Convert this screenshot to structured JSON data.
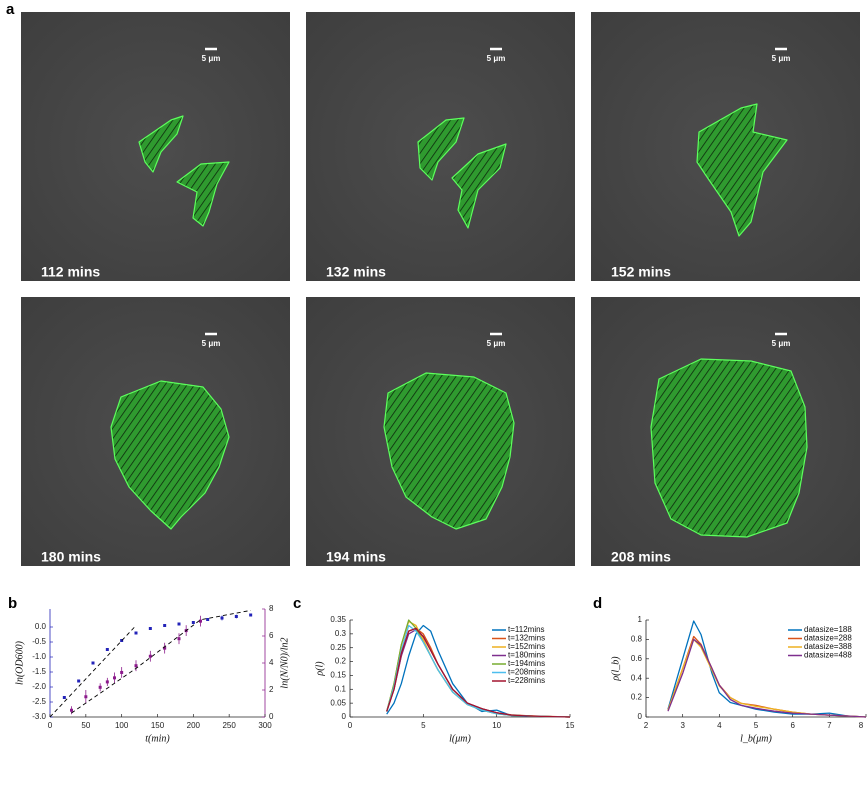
{
  "panel_labels": [
    "a",
    "b",
    "c",
    "d"
  ],
  "images": [
    {
      "label": "112 mins",
      "scale_bar": "5 μm"
    },
    {
      "label": "132 mins",
      "scale_bar": "5 μm"
    },
    {
      "label": "152 mins",
      "scale_bar": "5 μm"
    },
    {
      "label": "180 mins",
      "scale_bar": "5 μm"
    },
    {
      "label": "194 mins",
      "scale_bar": "5 μm"
    },
    {
      "label": "208 mins",
      "scale_bar": "5 μm"
    }
  ],
  "chart_data": [
    {
      "type": "scatter",
      "xlabel": "t(min)",
      "ylabel": "ln(OD600)",
      "y2label": "ln(N/N0)/ln2",
      "xlim": [
        0,
        300
      ],
      "xticks": [
        0,
        50,
        100,
        150,
        200,
        250,
        300
      ],
      "ylim": [
        -3,
        0.6
      ],
      "yticks": [
        {
          "value": -3,
          "label": "-3.0"
        },
        -2.5,
        {
          "value": -2,
          "label": "-2.0"
        },
        -1.5,
        {
          "value": -1,
          "label": "-1.0"
        },
        -0.5,
        {
          "value": 0,
          "label": "0.0"
        }
      ],
      "y2lim": [
        0,
        8
      ],
      "y2ticks": [
        0,
        2,
        4,
        6,
        8
      ],
      "y_axis_color": "#2323b8",
      "y2_axis_color": "#8b1a8b",
      "series": [
        {
          "mode": "markers",
          "color": "#2323b8",
          "x": [
            20,
            40,
            60,
            80,
            100,
            120,
            140,
            160,
            180,
            200,
            220,
            240,
            260,
            280
          ],
          "values": [
            -2.35,
            -1.8,
            -1.2,
            -0.75,
            -0.45,
            -0.2,
            -0.05,
            0.05,
            0.1,
            0.15,
            0.25,
            0.3,
            0.35,
            0.4
          ],
          "errors": [
            0.04,
            0.04,
            0.04,
            0.04,
            0.04,
            0.04,
            0.04,
            0.04,
            0.05,
            0.05,
            0.05,
            0.08,
            0.06,
            0.04
          ]
        },
        {
          "mode": "markers",
          "axis": "y2",
          "color": "#8b1a8b",
          "x": [
            30,
            50,
            70,
            80,
            90,
            100,
            120,
            140,
            160,
            180,
            190,
            210
          ],
          "values": [
            0.5,
            1.5,
            2.2,
            2.6,
            2.9,
            3.3,
            3.8,
            4.5,
            5.1,
            5.8,
            6.4,
            7.1
          ],
          "errors": [
            0.3,
            0.5,
            0.3,
            0.3,
            0.4,
            0.4,
            0.4,
            0.4,
            0.4,
            0.4,
            0.4,
            0.4
          ]
        },
        {
          "mode": "line",
          "style": "dashed",
          "color": "#000000",
          "x": [
            0,
            120
          ],
          "values": [
            -3,
            0.05
          ]
        },
        {
          "mode": "line",
          "style": "dashed",
          "axis": "y2",
          "color": "#000000",
          "x": [
            30,
            120,
            210,
            280
          ],
          "values": [
            0.3,
            3.6,
            7.2,
            7.9
          ]
        }
      ]
    },
    {
      "type": "line",
      "xlabel": "l(μm)",
      "ylabel": "ρ(l)",
      "legend": "upper right",
      "xlim": [
        0,
        15
      ],
      "xticks": [
        0,
        5,
        10,
        15
      ],
      "ylim": [
        0,
        0.35
      ],
      "yticks": [
        0,
        0.05,
        0.1,
        0.15,
        0.2,
        0.25,
        0.3,
        0.35
      ],
      "x": [
        2.5,
        3,
        3.5,
        4,
        4.5,
        5,
        5.5,
        6,
        7,
        8,
        9,
        10,
        11,
        12,
        13,
        15
      ],
      "series": [
        {
          "name": "t=112mins",
          "color": "#0072BD",
          "values": [
            0.01,
            0.05,
            0.12,
            0.22,
            0.3,
            0.33,
            0.31,
            0.24,
            0.12,
            0.05,
            0.02,
            0.025,
            0.005,
            0.003,
            0.002,
            0
          ]
        },
        {
          "name": "t=132mins",
          "color": "#D95319",
          "values": [
            0.02,
            0.1,
            0.22,
            0.31,
            0.32,
            0.3,
            0.25,
            0.19,
            0.1,
            0.05,
            0.03,
            0.015,
            0.008,
            0.005,
            0.003,
            0
          ]
        },
        {
          "name": "t=152mins",
          "color": "#EDB120",
          "values": [
            0.02,
            0.12,
            0.26,
            0.345,
            0.33,
            0.28,
            0.22,
            0.17,
            0.09,
            0.045,
            0.025,
            0.012,
            0.006,
            0.004,
            0.002,
            0
          ]
        },
        {
          "name": "t=180mins",
          "color": "#7E2F8E",
          "values": [
            0.02,
            0.1,
            0.22,
            0.3,
            0.315,
            0.29,
            0.24,
            0.19,
            0.1,
            0.05,
            0.03,
            0.015,
            0.007,
            0.004,
            0.002,
            0
          ]
        },
        {
          "name": "t=194mins",
          "color": "#77AC30",
          "values": [
            0.02,
            0.12,
            0.26,
            0.35,
            0.32,
            0.27,
            0.22,
            0.17,
            0.09,
            0.045,
            0.025,
            0.012,
            0.006,
            0.004,
            0.002,
            0
          ]
        },
        {
          "name": "t=208mins",
          "color": "#4DBEEE",
          "values": [
            0.02,
            0.11,
            0.24,
            0.33,
            0.31,
            0.27,
            0.22,
            0.17,
            0.09,
            0.045,
            0.025,
            0.012,
            0.006,
            0.004,
            0.002,
            0
          ]
        },
        {
          "name": "t=228mins",
          "color": "#A2142F",
          "values": [
            0.02,
            0.1,
            0.23,
            0.31,
            0.32,
            0.29,
            0.24,
            0.19,
            0.1,
            0.05,
            0.03,
            0.015,
            0.007,
            0.004,
            0.002,
            0
          ]
        }
      ]
    },
    {
      "type": "line",
      "xlabel": "l_b(μm)",
      "ylabel": "ρ(l_b)",
      "legend": "upper right",
      "xlim": [
        2,
        8
      ],
      "xticks": [
        2,
        3,
        4,
        5,
        6,
        7,
        8
      ],
      "ylim": [
        0,
        1
      ],
      "yticks": [
        0,
        0.2,
        0.4,
        0.6,
        0.8,
        1
      ],
      "x": [
        2.6,
        3,
        3.3,
        3.5,
        3.8,
        4,
        4.3,
        4.6,
        5,
        5.5,
        6,
        6.5,
        7,
        7.5,
        8
      ],
      "series": [
        {
          "name": "datasize=188",
          "color": "#0072BD",
          "values": [
            0.08,
            0.6,
            0.99,
            0.85,
            0.45,
            0.25,
            0.15,
            0.12,
            0.08,
            0.05,
            0.03,
            0.03,
            0.04,
            0.01,
            0
          ]
        },
        {
          "name": "datasize=288",
          "color": "#D95319",
          "values": [
            0.07,
            0.5,
            0.83,
            0.75,
            0.5,
            0.33,
            0.2,
            0.14,
            0.12,
            0.08,
            0.05,
            0.03,
            0.02,
            0.01,
            0
          ]
        },
        {
          "name": "datasize=388",
          "color": "#EDB120",
          "values": [
            0.07,
            0.5,
            0.8,
            0.72,
            0.48,
            0.32,
            0.2,
            0.14,
            0.11,
            0.08,
            0.05,
            0.03,
            0.02,
            0.01,
            0
          ]
        },
        {
          "name": "datasize=488",
          "color": "#7E2F8E",
          "values": [
            0.06,
            0.45,
            0.8,
            0.74,
            0.5,
            0.33,
            0.18,
            0.12,
            0.09,
            0.06,
            0.04,
            0.03,
            0.02,
            0.01,
            0
          ]
        }
      ]
    }
  ]
}
